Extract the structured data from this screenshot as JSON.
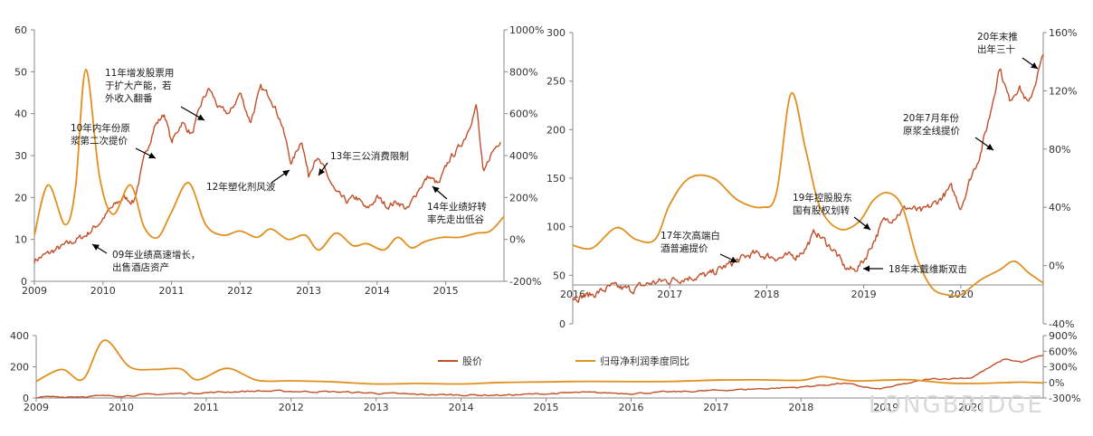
{
  "colors": {
    "price": "#c0502a",
    "profit": "#e0901f",
    "axis": "#888888",
    "text": "#333333",
    "arrow": "#000000"
  },
  "watermark": "LONGBRIDGE",
  "legend": {
    "price_label": "股价",
    "profit_label": "归母净利润季度同比"
  },
  "chart_data": [
    {
      "type": "line",
      "panel": "left",
      "x_ticks": [
        "2009",
        "2010",
        "2011",
        "2012",
        "2013",
        "2014",
        "2015"
      ],
      "y_left_ticks": [
        "60",
        "50",
        "40",
        "30",
        "20",
        "10",
        "0"
      ],
      "y_right_ticks": [
        "1000%",
        "800%",
        "600%",
        "400%",
        "200%",
        "0%",
        "-200%"
      ],
      "ylim_left": [
        0,
        60
      ],
      "ylim_right": [
        -200,
        1000
      ],
      "xlim": [
        2009.0,
        2015.85
      ],
      "series": [
        {
          "name": "股价",
          "axis": "left",
          "x": [
            2009.0,
            2009.25,
            2009.5,
            2009.75,
            2009.95,
            2010.1,
            2010.3,
            2010.45,
            2010.6,
            2010.75,
            2010.9,
            2011.0,
            2011.15,
            2011.3,
            2011.45,
            2011.55,
            2011.7,
            2011.85,
            2012.0,
            2012.15,
            2012.3,
            2012.45,
            2012.6,
            2012.75,
            2012.9,
            2013.0,
            2013.1,
            2013.25,
            2013.4,
            2013.55,
            2013.7,
            2013.85,
            2014.0,
            2014.15,
            2014.3,
            2014.45,
            2014.6,
            2014.75,
            2014.9,
            2015.05,
            2015.2,
            2015.3,
            2015.45,
            2015.55,
            2015.65,
            2015.8
          ],
          "values": [
            5,
            7,
            9,
            11,
            14,
            17,
            20,
            19,
            29,
            37,
            40,
            33,
            38,
            35,
            43,
            46,
            41,
            40,
            45,
            38,
            46,
            44,
            38,
            28,
            34,
            25,
            30,
            26,
            21,
            19,
            20,
            17,
            20,
            18,
            19,
            17,
            22,
            25,
            23,
            29,
            32,
            35,
            42,
            25,
            30,
            34
          ]
        },
        {
          "name": "归母净利润季度同比",
          "axis": "right",
          "x": [
            2009.0,
            2009.2,
            2009.45,
            2009.6,
            2009.75,
            2009.95,
            2010.15,
            2010.4,
            2010.6,
            2010.8,
            2011.0,
            2011.25,
            2011.5,
            2011.75,
            2012.0,
            2012.25,
            2012.45,
            2012.7,
            2012.95,
            2013.15,
            2013.4,
            2013.65,
            2013.85,
            2014.1,
            2014.3,
            2014.5,
            2014.7,
            2014.95,
            2015.2,
            2015.45,
            2015.65,
            2015.85
          ],
          "values": [
            20,
            260,
            70,
            250,
            810,
            300,
            120,
            260,
            60,
            10,
            130,
            270,
            70,
            20,
            40,
            10,
            50,
            0,
            20,
            -50,
            30,
            -30,
            -20,
            -50,
            10,
            -40,
            -10,
            10,
            10,
            30,
            40,
            110
          ]
        }
      ],
      "annotations": [
        "11年增发股票用\n于扩大产能，若\n外收入翻番",
        "10年内年份原\n浆第二次提价",
        "09年业绩高速增长，\n出售酒店资产",
        "12年塑化剂风波",
        "13年三公消费限制",
        "14年业绩好转\n率先走出低谷"
      ]
    },
    {
      "type": "line",
      "panel": "right",
      "x_ticks": [
        "2016",
        "2017",
        "2018",
        "2019",
        "2020"
      ],
      "y_left_ticks": [
        "300",
        "250",
        "200",
        "150",
        "100",
        "50",
        "0"
      ],
      "y_right_ticks": [
        "160%",
        "120%",
        "80%",
        "40%",
        "0%",
        "-40%"
      ],
      "ylim_left": [
        0,
        300
      ],
      "ylim_right": [
        -40,
        160
      ],
      "xlim": [
        2016.0,
        2020.85
      ],
      "series": [
        {
          "name": "股价",
          "axis": "left",
          "x": [
            2016.0,
            2016.2,
            2016.4,
            2016.6,
            2016.8,
            2017.0,
            2017.2,
            2017.4,
            2017.55,
            2017.7,
            2017.85,
            2018.0,
            2018.15,
            2018.3,
            2018.4,
            2018.5,
            2018.6,
            2018.7,
            2018.8,
            2018.9,
            2019.0,
            2019.1,
            2019.2,
            2019.3,
            2019.45,
            2019.6,
            2019.75,
            2019.9,
            2020.0,
            2020.1,
            2020.2,
            2020.3,
            2020.4,
            2020.5,
            2020.6,
            2020.7,
            2020.8,
            2020.85
          ],
          "values": [
            27,
            30,
            38,
            35,
            42,
            45,
            48,
            50,
            58,
            65,
            72,
            70,
            68,
            70,
            78,
            95,
            85,
            75,
            58,
            55,
            65,
            85,
            105,
            110,
            120,
            115,
            125,
            140,
            120,
            150,
            175,
            215,
            265,
            230,
            245,
            225,
            260,
            275
          ]
        },
        {
          "name": "归母净利润季度同比",
          "axis": "right",
          "x": [
            2016.0,
            2016.2,
            2016.45,
            2016.65,
            2016.85,
            2017.0,
            2017.2,
            2017.45,
            2017.7,
            2017.95,
            2018.1,
            2018.25,
            2018.4,
            2018.55,
            2018.75,
            2018.95,
            2019.1,
            2019.25,
            2019.4,
            2019.55,
            2019.7,
            2019.85,
            2020.0,
            2020.2,
            2020.4,
            2020.55,
            2020.7,
            2020.85
          ],
          "values": [
            14,
            12,
            26,
            18,
            18,
            42,
            60,
            60,
            45,
            40,
            50,
            118,
            80,
            40,
            25,
            30,
            45,
            50,
            40,
            5,
            -15,
            -20,
            -20,
            -10,
            -3,
            3,
            -5,
            -12
          ]
        }
      ],
      "annotations": [
        "20年末推\n出年三十",
        "20年7月年份\n原浆全线提价",
        "19年控股股东\n国有股权划转",
        "17年次高端白\n酒普遍提价",
        "18年末戴维斯双击"
      ]
    },
    {
      "type": "line",
      "panel": "bottom",
      "x_ticks": [
        "2009",
        "2010",
        "2011",
        "2012",
        "2013",
        "2014",
        "2015",
        "2016",
        "2017",
        "2018",
        "2019",
        "2020"
      ],
      "y_left_ticks": [
        "400",
        "200",
        "0"
      ],
      "y_right_ticks": [
        "900%",
        "600%",
        "300%",
        "0%",
        "-300%"
      ],
      "ylim_left": [
        0,
        400
      ],
      "ylim_right": [
        -300,
        900
      ],
      "xlim": [
        2009.0,
        2020.85
      ],
      "series": [
        {
          "name": "股价",
          "axis": "left",
          "x": [
            2009.0,
            2010.0,
            2011.0,
            2011.6,
            2012.5,
            2013.5,
            2014.5,
            2015.4,
            2016.0,
            2017.0,
            2018.0,
            2018.5,
            2018.9,
            2019.5,
            2020.0,
            2020.4,
            2020.6,
            2020.85
          ],
          "values": [
            5,
            15,
            35,
            45,
            40,
            22,
            18,
            35,
            30,
            48,
            70,
            95,
            55,
            120,
            130,
            250,
            230,
            275
          ]
        },
        {
          "name": "归母净利润季度同比",
          "axis": "right",
          "x": [
            2009.0,
            2009.3,
            2009.55,
            2009.8,
            2010.1,
            2010.4,
            2010.7,
            2010.9,
            2011.25,
            2011.6,
            2012.0,
            2012.5,
            2013.0,
            2013.5,
            2014.0,
            2014.5,
            2015.0,
            2015.5,
            2016.0,
            2016.5,
            2017.0,
            2017.5,
            2018.0,
            2018.25,
            2018.6,
            2019.0,
            2019.3,
            2019.7,
            2020.0,
            2020.4,
            2020.6,
            2020.85
          ],
          "values": [
            20,
            250,
            60,
            810,
            300,
            250,
            260,
            50,
            270,
            40,
            30,
            10,
            -30,
            -20,
            -30,
            0,
            10,
            20,
            15,
            20,
            45,
            50,
            40,
            110,
            30,
            45,
            50,
            -10,
            -20,
            -5,
            5,
            -10
          ]
        }
      ]
    }
  ]
}
